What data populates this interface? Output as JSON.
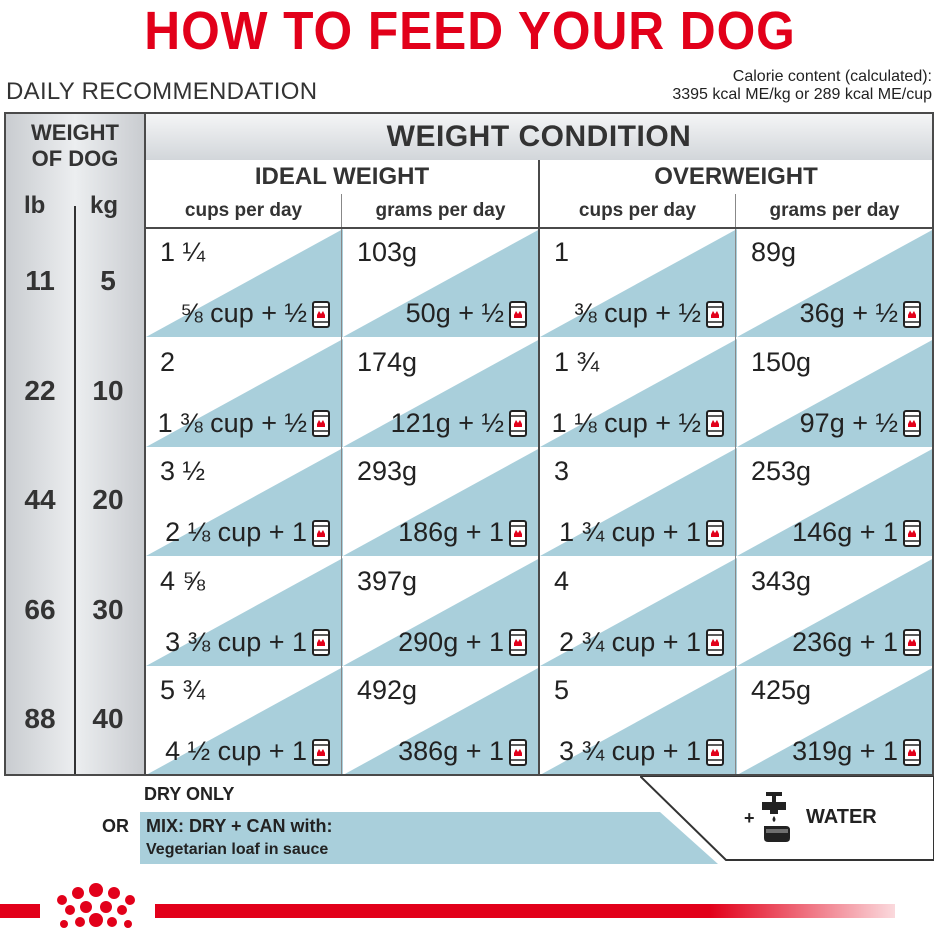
{
  "title": "HOW TO FEED YOUR DOG",
  "daily_recommendation": "DAILY RECOMMENDATION",
  "calorie": {
    "line1": "Calorie content (calculated):",
    "line2": "3395 kcal ME/kg or 289 kcal ME/cup"
  },
  "table": {
    "weight_of_dog_line1": "WEIGHT",
    "weight_of_dog_line2": "OF DOG",
    "unit_lb": "lb",
    "unit_kg": "kg",
    "weight_condition": "WEIGHT CONDITION",
    "ideal_weight": "IDEAL WEIGHT",
    "overweight": "OVERWEIGHT",
    "cups_per_day": "cups per day",
    "grams_per_day": "grams per day",
    "rows": [
      {
        "lb": "11",
        "kg": "5",
        "cells": [
          {
            "top": "1 ¼",
            "bot": "⅝ cup + ½"
          },
          {
            "top": "103g",
            "bot": "50g + ½"
          },
          {
            "top": "1",
            "bot": "⅜ cup + ½"
          },
          {
            "top": "89g",
            "bot": "36g + ½"
          }
        ]
      },
      {
        "lb": "22",
        "kg": "10",
        "cells": [
          {
            "top": "2",
            "bot": "1 ⅜ cup + ½"
          },
          {
            "top": "174g",
            "bot": "121g + ½"
          },
          {
            "top": "1 ¾",
            "bot": "1 ⅛ cup + ½"
          },
          {
            "top": "150g",
            "bot": "97g + ½"
          }
        ]
      },
      {
        "lb": "44",
        "kg": "20",
        "cells": [
          {
            "top": "3 ½",
            "bot": "2 ⅛ cup + 1"
          },
          {
            "top": "293g",
            "bot": "186g + 1"
          },
          {
            "top": "3",
            "bot": "1 ¾ cup + 1"
          },
          {
            "top": "253g",
            "bot": "146g + 1"
          }
        ]
      },
      {
        "lb": "66",
        "kg": "30",
        "cells": [
          {
            "top": "4 ⅝",
            "bot": "3 ⅜ cup + 1"
          },
          {
            "top": "397g",
            "bot": "290g + 1"
          },
          {
            "top": "4",
            "bot": "2 ¾ cup + 1"
          },
          {
            "top": "343g",
            "bot": "236g + 1"
          }
        ]
      },
      {
        "lb": "88",
        "kg": "40",
        "cells": [
          {
            "top": "5 ¾",
            "bot": "4 ½ cup + 1"
          },
          {
            "top": "492g",
            "bot": "386g + 1"
          },
          {
            "top": "5",
            "bot": "3 ¾ cup + 1"
          },
          {
            "top": "425g",
            "bot": "319g + 1"
          }
        ]
      }
    ]
  },
  "legend": {
    "dry_only": "DRY ONLY",
    "or": "OR",
    "mix": "MIX: DRY + CAN with:",
    "mix_sub": "Vegetarian loaf in sauce",
    "plus": "+",
    "water": "WATER"
  },
  "colors": {
    "brand_red": "#e2001a",
    "cell_blue": "#a9cfdb",
    "dark_line": "#4a4a4a"
  },
  "icons": [
    "can-icon",
    "water-tap-icon",
    "royal-canin-crown-logo"
  ]
}
